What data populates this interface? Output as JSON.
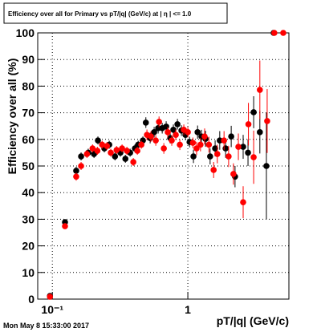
{
  "chart_data": {
    "type": "scatter",
    "title": "Efficiency over all for Primary vs pT/|q| (GeV/c) at | η | <= 1.0",
    "x_label": "pT/|q| (GeV/c)",
    "y_label": "Efficiency over all (%)",
    "footer": "Mon May  8 15:33:00 2017",
    "log_x": true,
    "grid": true,
    "xlim": [
      0.078,
      5.57
    ],
    "ylim": [
      0,
      100
    ],
    "xticks": [
      {
        "value": 0.1,
        "label": "10⁻¹"
      },
      1
    ],
    "yticks": [
      0,
      10,
      20,
      30,
      40,
      50,
      60,
      70,
      80,
      90,
      100
    ],
    "series": [
      {
        "color": "#000000",
        "x": [
          0.096,
          0.124,
          0.15,
          0.163,
          0.184,
          0.203,
          0.217,
          0.242,
          0.263,
          0.29,
          0.318,
          0.346,
          0.375,
          0.407,
          0.43,
          0.466,
          0.49,
          0.527,
          0.564,
          0.604,
          0.647,
          0.692,
          0.741,
          0.782,
          0.838,
          0.897,
          0.96,
          1.03,
          1.1,
          1.18,
          1.26,
          1.35,
          1.46,
          1.59,
          1.72,
          1.9,
          2.09,
          2.23,
          2.56,
          2.78,
          3.06,
          3.4,
          3.8,
          4.3
        ],
        "values": [
          1.2,
          28.9,
          48.2,
          53.6,
          55,
          54.5,
          59.6,
          56.6,
          58,
          53.6,
          55,
          52.7,
          55,
          56.6,
          58,
          59.6,
          66.3,
          60.5,
          62.7,
          64.2,
          64.2,
          64.8,
          60.5,
          63.6,
          65.7,
          63.3,
          61.7,
          59,
          53.6,
          62.7,
          61.1,
          60.2,
          53.6,
          56.6,
          59.6,
          56.6,
          61.1,
          46,
          57.2,
          55,
          70.2,
          62.7,
          50,
          100
        ],
        "errors": [
          0.5,
          1,
          1.5,
          1.5,
          1.5,
          1.5,
          1.5,
          1.5,
          1.5,
          1.5,
          1.5,
          1.5,
          1.5,
          1.5,
          1.5,
          1.5,
          2,
          2,
          2,
          2,
          2,
          2,
          2,
          2,
          2,
          2,
          2,
          2,
          2.5,
          2.5,
          2.5,
          3,
          3,
          3,
          3.5,
          3.5,
          4,
          4,
          4.5,
          5,
          6,
          8,
          20,
          0
        ]
      },
      {
        "color": "#ff0000",
        "x": [
          0.096,
          0.124,
          0.15,
          0.163,
          0.18,
          0.198,
          0.215,
          0.233,
          0.253,
          0.27,
          0.298,
          0.327,
          0.355,
          0.396,
          0.424,
          0.454,
          0.499,
          0.534,
          0.58,
          0.613,
          0.665,
          0.711,
          0.761,
          0.815,
          0.873,
          0.934,
          1.0,
          1.09,
          1.16,
          1.24,
          1.33,
          1.43,
          1.55,
          1.65,
          1.85,
          2.0,
          2.17,
          2.36,
          2.56,
          2.8,
          3.06,
          3.4,
          3.85,
          4.35,
          5.06
        ],
        "values": [
          0.9,
          27.4,
          46,
          50,
          54.5,
          56.6,
          55.7,
          58,
          57.5,
          55,
          56,
          56.6,
          55.7,
          51.5,
          55.7,
          58,
          61.7,
          61.1,
          59.6,
          66.6,
          56.6,
          62.7,
          59.6,
          61.7,
          58,
          63.6,
          62.7,
          58.7,
          56.6,
          58,
          61.1,
          58,
          48.5,
          54.5,
          59.6,
          53.6,
          47,
          57.2,
          36.4,
          65.7,
          53.3,
          78.6,
          66.9,
          100,
          100
        ],
        "errors": [
          0.5,
          1,
          1.5,
          1.5,
          1.5,
          1.5,
          1.5,
          1.5,
          1.5,
          1.5,
          1.5,
          1.5,
          1.5,
          1.5,
          1.5,
          1.5,
          2,
          2,
          2,
          2,
          2,
          2,
          2,
          2,
          2,
          2,
          2,
          2,
          2.5,
          2.5,
          3,
          3,
          3,
          3.5,
          3.5,
          4,
          4,
          5,
          6,
          8,
          10,
          11,
          12,
          0,
          0
        ]
      }
    ]
  }
}
